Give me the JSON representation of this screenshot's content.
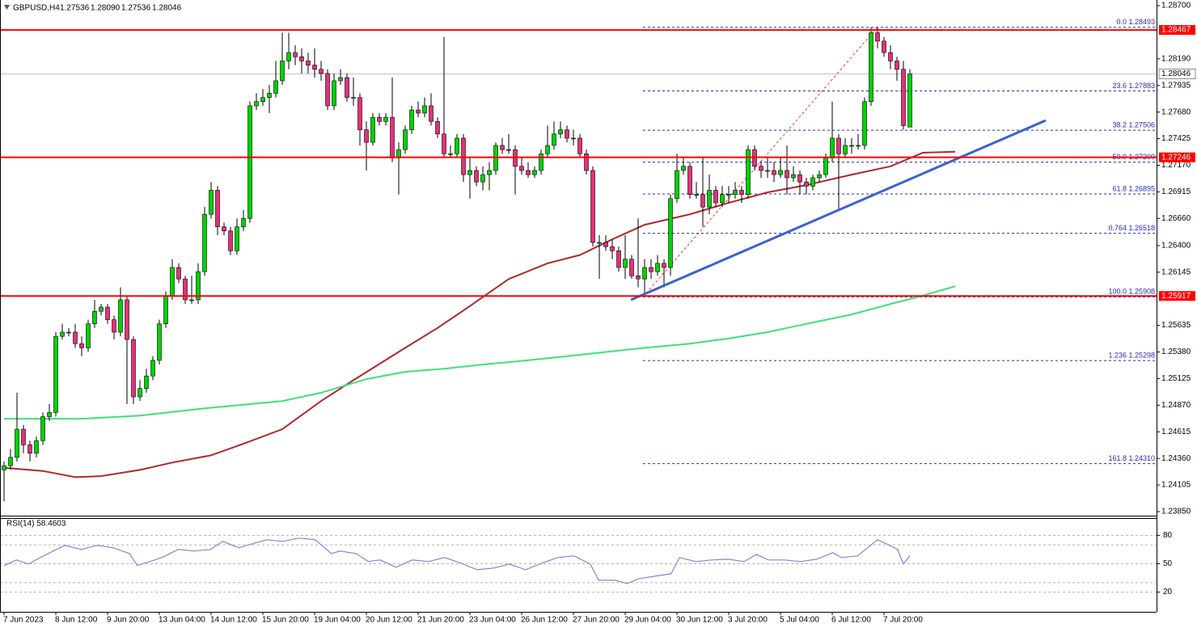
{
  "chart_data": {
    "type": "candlestick",
    "title": "GBPUSD,H4",
    "header_values": [
      "1.27536",
      "1.28090",
      "1.27536",
      "1.28046"
    ],
    "up_color": "#00d400",
    "down_color": "#e6307a",
    "candles": {
      "open": [
        1.2425,
        1.2429,
        1.2437,
        1.2464,
        1.2449,
        1.2441,
        1.2453,
        1.2476,
        1.248,
        1.2553,
        1.2557,
        1.2557,
        1.2546,
        1.2542,
        1.2565,
        1.2577,
        1.2581,
        1.2569,
        1.2557,
        1.2588,
        1.255,
        1.2495,
        1.2503,
        1.2515,
        1.253,
        1.2565,
        1.2592,
        1.2619,
        1.2608,
        1.2588,
        1.2588,
        1.2615,
        1.267,
        1.2693,
        1.2658,
        1.2654,
        1.2635,
        1.2658,
        1.2666,
        1.2774,
        1.2778,
        1.2782,
        1.2786,
        1.2798,
        1.2817,
        1.2825,
        1.2821,
        1.2817,
        1.2813,
        1.2809,
        1.2805,
        1.2774,
        1.2798,
        1.2801,
        1.2782,
        1.2782,
        1.2751,
        1.2739,
        1.2763,
        1.2759,
        1.2763,
        1.2724,
        1.2732,
        1.2751,
        1.277,
        1.2767,
        1.2774,
        1.2759,
        1.2747,
        1.2728,
        1.2728,
        1.2743,
        1.2708,
        1.2712,
        1.2701,
        1.2708,
        1.2712,
        1.2736,
        1.2732,
        1.2732,
        1.2716,
        1.2712,
        1.2708,
        1.2712,
        1.2728,
        1.2736,
        1.2747,
        1.2751,
        1.2743,
        1.2743,
        1.2728,
        1.2712,
        1.2643,
        1.2643,
        1.2639,
        1.2635,
        1.2619,
        1.2627,
        1.2611,
        1.2608,
        1.2619,
        1.2615,
        1.2623,
        1.2619,
        1.2685,
        1.2712,
        1.2716,
        1.2689,
        1.2689,
        1.2677,
        1.2693,
        1.2681,
        1.2689,
        1.2689,
        1.2693,
        1.2689,
        1.2732,
        1.2716,
        1.2712,
        1.2712,
        1.2708,
        1.2712,
        1.2705,
        1.2708,
        1.2701,
        1.2697,
        1.2705,
        1.2708,
        1.2724,
        1.2743,
        1.2728,
        1.2736,
        1.2736,
        1.2736,
        1.2778,
        1.2844,
        1.2836,
        1.2825,
        1.2817,
        1.2809,
        1.27536
      ],
      "high": [
        1.2433,
        1.2445,
        1.2499,
        1.2468,
        1.2453,
        1.2457,
        1.248,
        1.2488,
        1.2557,
        1.2565,
        1.2561,
        1.2565,
        1.2553,
        1.2569,
        1.2588,
        1.2584,
        1.2584,
        1.2573,
        1.26,
        1.2592,
        1.2553,
        1.2511,
        1.2522,
        1.2534,
        1.2569,
        1.2596,
        1.2627,
        1.2623,
        1.2611,
        1.2611,
        1.2623,
        1.2677,
        1.2701,
        1.2697,
        1.2662,
        1.2658,
        1.2666,
        1.2674,
        1.2778,
        1.2786,
        1.279,
        1.2794,
        1.2817,
        1.2844,
        1.2844,
        1.2832,
        1.2829,
        1.2825,
        1.2829,
        1.2817,
        1.2809,
        1.2805,
        1.2809,
        1.2805,
        1.2801,
        1.2786,
        1.2759,
        1.2767,
        1.2767,
        1.2767,
        1.2801,
        1.2739,
        1.2755,
        1.2774,
        1.2778,
        1.2782,
        1.2786,
        1.2763,
        1.284,
        1.2736,
        1.2747,
        1.2747,
        1.2724,
        1.2716,
        1.2716,
        1.272,
        1.2739,
        1.2743,
        1.2747,
        1.2736,
        1.2724,
        1.272,
        1.2716,
        1.2732,
        1.2755,
        1.2759,
        1.2759,
        1.2755,
        1.2751,
        1.2747,
        1.2732,
        1.2716,
        1.265,
        1.265,
        1.2646,
        1.2639,
        1.265,
        1.2631,
        1.2666,
        1.2627,
        1.2627,
        1.2631,
        1.2627,
        1.2689,
        1.2728,
        1.2724,
        1.272,
        1.2701,
        1.2724,
        1.2708,
        1.2697,
        1.2697,
        1.2697,
        1.2701,
        1.2697,
        1.2736,
        1.2736,
        1.272,
        1.2724,
        1.272,
        1.2724,
        1.2736,
        1.2716,
        1.2712,
        1.2705,
        1.2708,
        1.2712,
        1.2728,
        1.2778,
        1.2747,
        1.2743,
        1.2743,
        1.2747,
        1.2782,
        1.2849,
        1.2849,
        1.284,
        1.2832,
        1.2821,
        1.2817,
        1.2809
      ],
      "low": [
        1.2395,
        1.2425,
        1.2433,
        1.2441,
        1.2433,
        1.2437,
        1.2449,
        1.2472,
        1.2476,
        1.255,
        1.2553,
        1.2542,
        1.2534,
        1.2538,
        1.2561,
        1.2573,
        1.2565,
        1.255,
        1.2553,
        1.2488,
        1.2488,
        1.2491,
        1.2499,
        1.2511,
        1.2526,
        1.2561,
        1.2588,
        1.2604,
        1.2584,
        1.2584,
        1.2584,
        1.2611,
        1.2666,
        1.265,
        1.265,
        1.2631,
        1.2631,
        1.2654,
        1.2662,
        1.277,
        1.2774,
        1.2767,
        1.2782,
        1.2794,
        1.2809,
        1.2813,
        1.2805,
        1.2805,
        1.2801,
        1.2798,
        1.277,
        1.277,
        1.2794,
        1.2778,
        1.2774,
        1.2736,
        1.2712,
        1.2736,
        1.2755,
        1.2755,
        1.272,
        1.2689,
        1.2728,
        1.2747,
        1.2763,
        1.2763,
        1.2755,
        1.2743,
        1.2724,
        1.2724,
        1.2724,
        1.2701,
        1.2685,
        1.2697,
        1.2693,
        1.2693,
        1.2708,
        1.2728,
        1.2728,
        1.2689,
        1.2708,
        1.2705,
        1.2705,
        1.2708,
        1.2724,
        1.2732,
        1.2743,
        1.2739,
        1.2736,
        1.2724,
        1.2708,
        1.2639,
        1.2608,
        1.2635,
        1.2627,
        1.2615,
        1.2608,
        1.2608,
        1.26,
        1.2592,
        1.2608,
        1.2611,
        1.26,
        1.2611,
        1.2681,
        1.2708,
        1.2685,
        1.2685,
        1.2658,
        1.267,
        1.2677,
        1.2677,
        1.2681,
        1.2685,
        1.2681,
        1.2685,
        1.2712,
        1.2705,
        1.2705,
        1.2701,
        1.2705,
        1.2689,
        1.2701,
        1.2689,
        1.2689,
        1.2693,
        1.2701,
        1.2705,
        1.272,
        1.2674,
        1.2724,
        1.2728,
        1.2732,
        1.2732,
        1.2774,
        1.2829,
        1.2821,
        1.2809,
        1.2798,
        1.2751,
        1.27536
      ],
      "close": [
        1.2429,
        1.2437,
        1.2464,
        1.2449,
        1.2441,
        1.2453,
        1.2476,
        1.248,
        1.2553,
        1.2557,
        1.2557,
        1.2546,
        1.2542,
        1.2565,
        1.2577,
        1.2581,
        1.2569,
        1.2557,
        1.2588,
        1.255,
        1.2495,
        1.2503,
        1.2515,
        1.253,
        1.2565,
        1.2592,
        1.2619,
        1.2608,
        1.2588,
        1.2588,
        1.2615,
        1.267,
        1.2693,
        1.2658,
        1.2654,
        1.2635,
        1.2658,
        1.2666,
        1.2774,
        1.2778,
        1.2782,
        1.2786,
        1.2798,
        1.2817,
        1.2825,
        1.2821,
        1.2817,
        1.2813,
        1.2809,
        1.2805,
        1.2774,
        1.2798,
        1.2801,
        1.2782,
        1.2782,
        1.2751,
        1.2739,
        1.2763,
        1.2759,
        1.2763,
        1.2724,
        1.2732,
        1.2751,
        1.277,
        1.2767,
        1.2774,
        1.2759,
        1.2747,
        1.2728,
        1.2728,
        1.2743,
        1.2708,
        1.2712,
        1.2701,
        1.2708,
        1.2712,
        1.2736,
        1.2732,
        1.2732,
        1.2716,
        1.2712,
        1.2708,
        1.2712,
        1.2728,
        1.2736,
        1.2747,
        1.2751,
        1.2743,
        1.2743,
        1.2728,
        1.2712,
        1.2643,
        1.2643,
        1.2639,
        1.2635,
        1.2619,
        1.2627,
        1.2611,
        1.2608,
        1.2619,
        1.2615,
        1.2623,
        1.2619,
        1.2685,
        1.2712,
        1.2716,
        1.2689,
        1.2689,
        1.2677,
        1.2693,
        1.2681,
        1.2689,
        1.2689,
        1.2693,
        1.2689,
        1.2732,
        1.2716,
        1.2712,
        1.2712,
        1.2708,
        1.2712,
        1.2705,
        1.2708,
        1.2701,
        1.2697,
        1.2705,
        1.2708,
        1.2724,
        1.2743,
        1.2728,
        1.2736,
        1.2736,
        1.2736,
        1.2778,
        1.2844,
        1.2836,
        1.2825,
        1.2817,
        1.2809,
        1.2755,
        1.28046
      ]
    },
    "ylim": [
      1.2385,
      1.287
    ],
    "yticks": [
      {
        "value": 1.287,
        "label": "1.28700"
      },
      {
        "value": 1.2819,
        "label": "1.28190"
      },
      1.27935,
      {
        "value": 1.2768,
        "label": "1.27680"
      },
      1.27425,
      {
        "value": 1.2717,
        "label": "1.27170"
      },
      1.26915,
      {
        "value": 1.2666,
        "label": "1.26660"
      },
      {
        "value": 1.264,
        "label": "1.26400"
      },
      1.26145,
      1.25635,
      {
        "value": 1.2538,
        "label": "1.25380"
      },
      1.25125,
      {
        "value": 1.2487,
        "label": "1.24870"
      },
      1.24615,
      {
        "value": 1.2436,
        "label": "1.24360"
      },
      1.24105,
      {
        "value": 1.2385,
        "label": "1.23850"
      }
    ],
    "xticks": [
      {
        "value": 0,
        "label": "7 Jun 2023"
      },
      {
        "value": 8,
        "label": "8 Jun 12:00"
      },
      {
        "value": 16,
        "label": "9 Jun 20:00"
      },
      {
        "value": 24,
        "label": "13 Jun 04:00"
      },
      {
        "value": 32,
        "label": "14 Jun 12:00"
      },
      {
        "value": 40,
        "label": "15 Jun 20:00"
      },
      {
        "value": 48,
        "label": "19 Jun 04:00"
      },
      {
        "value": 56,
        "label": "20 Jun 12:00"
      },
      {
        "value": 64,
        "label": "21 Jun 20:00"
      },
      {
        "value": 72,
        "label": "23 Jun 04:00"
      },
      {
        "value": 80,
        "label": "26 Jun 12:00"
      },
      {
        "value": 88,
        "label": "27 Jun 20:00"
      },
      {
        "value": 96,
        "label": "29 Jun 04:00"
      },
      {
        "value": 104,
        "label": "30 Jun 12:00"
      },
      {
        "value": 112,
        "label": "3 Jul 20:00"
      },
      {
        "value": 120,
        "label": "5 Jul 04:00"
      },
      {
        "value": 128,
        "label": "6 Jul 12:00"
      },
      {
        "value": 136,
        "label": "7 Jul 20:00"
      }
    ],
    "moving_averages": [
      {
        "color": "#b0282a",
        "x": [
          0,
          6,
          11,
          15,
          21,
          26,
          32,
          37,
          43,
          49,
          54,
          62,
          67,
          72,
          78,
          84,
          89,
          94,
          99,
          106,
          112,
          118,
          124,
          131,
          137,
          142,
          147
        ],
        "values": [
          1.2427,
          1.2424,
          1.2418,
          1.2419,
          1.2425,
          1.2432,
          1.2439,
          1.245,
          1.2464,
          1.2491,
          1.2511,
          1.2542,
          1.2561,
          1.2582,
          1.2608,
          1.2623,
          1.2631,
          1.2646,
          1.266,
          1.267,
          1.2681,
          1.2691,
          1.2698,
          1.2708,
          1.2716,
          1.2729,
          1.273
        ]
      },
      {
        "color": "#3ee07a",
        "x": [
          0,
          12,
          21,
          31,
          43,
          49,
          56,
          62,
          68,
          74,
          81,
          87,
          93,
          99,
          106,
          112,
          118,
          124,
          131,
          137,
          142,
          147
        ],
        "values": [
          1.2474,
          1.2474,
          1.2477,
          1.2484,
          1.2491,
          1.2499,
          1.2512,
          1.2519,
          1.2522,
          1.2526,
          1.253,
          1.2534,
          1.2538,
          1.2542,
          1.2546,
          1.2551,
          1.2557,
          1.2565,
          1.2574,
          1.2584,
          1.2592,
          1.2601
        ]
      }
    ],
    "trendline": {
      "color": "#3a62d0",
      "x": [
        96.9,
        161
      ],
      "values": [
        1.2588,
        1.276
      ]
    },
    "hline_color": "#ff0000",
    "hlines": [
      1.28467,
      1.27246,
      1.25917
    ],
    "current_price": 1.28046,
    "fibonacci": {
      "color": "#2a2ab8",
      "x": [
        98.75,
        135
      ],
      "levels": [
        {
          "value": 1.28493,
          "label": "0.0 1.28493"
        },
        {
          "value": 1.27883,
          "label": "23.6 1.27883"
        },
        {
          "value": 1.27506,
          "label": "38.2 1.27506"
        },
        {
          "value": 1.272,
          "label": "50.0 1.27200"
        },
        {
          "value": 1.26895,
          "label": "61.8 1.26895"
        },
        {
          "value": 1.26518,
          "label": "0.764 1.26518"
        },
        {
          "value": 1.25908,
          "label": "100.0 1.25908"
        },
        {
          "value": 1.25298,
          "label": "1.236 1.25298"
        },
        {
          "value": 1.2431,
          "label": "161.8 1.24310"
        }
      ]
    },
    "rsi": {
      "title": "RSI(14) 58.4603",
      "color": "#8a82d8",
      "ylim": [
        0,
        100
      ],
      "yticks": [
        80,
        50,
        20
      ],
      "levels": [
        80,
        70,
        50,
        30,
        20
      ],
      "x": [
        0,
        1.9,
        3.8,
        5.6,
        8.1,
        9.4,
        11.9,
        14.4,
        16.9,
        19.4,
        20.6,
        22.5,
        24.4,
        26.9,
        29.4,
        31.9,
        33.8,
        36.3,
        38.8,
        40.6,
        43.1,
        45.6,
        48.1,
        50.6,
        51.9,
        54.4,
        56.3,
        58.1,
        60.6,
        63.1,
        65.6,
        68.1,
        70.6,
        73.1,
        75.6,
        78.1,
        80.6,
        83.1,
        85.6,
        88.1,
        90.6,
        91.9,
        94.4,
        96.3,
        98.1,
        100.6,
        103.1,
        104.4,
        106.9,
        109.4,
        111.9,
        114.4,
        116.3,
        118.1,
        120.6,
        123.1,
        125.6,
        128.1,
        129.4,
        131.9,
        133.8,
        135,
        136.9,
        138.1,
        139,
        140
      ],
      "values": [
        48.0,
        54.0,
        49.7,
        56.6,
        65.1,
        69.4,
        65.1,
        69.4,
        66.8,
        60.8,
        48.0,
        52.3,
        56.6,
        65.1,
        63.4,
        65.1,
        73.7,
        66.8,
        72.0,
        75.4,
        73.7,
        77.1,
        75.4,
        60.8,
        63.4,
        60.8,
        52.3,
        54.0,
        46.3,
        54.0,
        52.3,
        56.6,
        50.6,
        43.7,
        45.4,
        49.7,
        43.7,
        50.6,
        56.6,
        58.3,
        49.7,
        32.6,
        32.6,
        29.1,
        34.3,
        36.8,
        39.4,
        56.6,
        52.3,
        54.0,
        54.8,
        52.3,
        60.0,
        54.0,
        54.0,
        52.3,
        54.8,
        61.7,
        56.6,
        58.3,
        68.6,
        75.4,
        69.4,
        65.1,
        49.7,
        58.4603
      ]
    }
  }
}
